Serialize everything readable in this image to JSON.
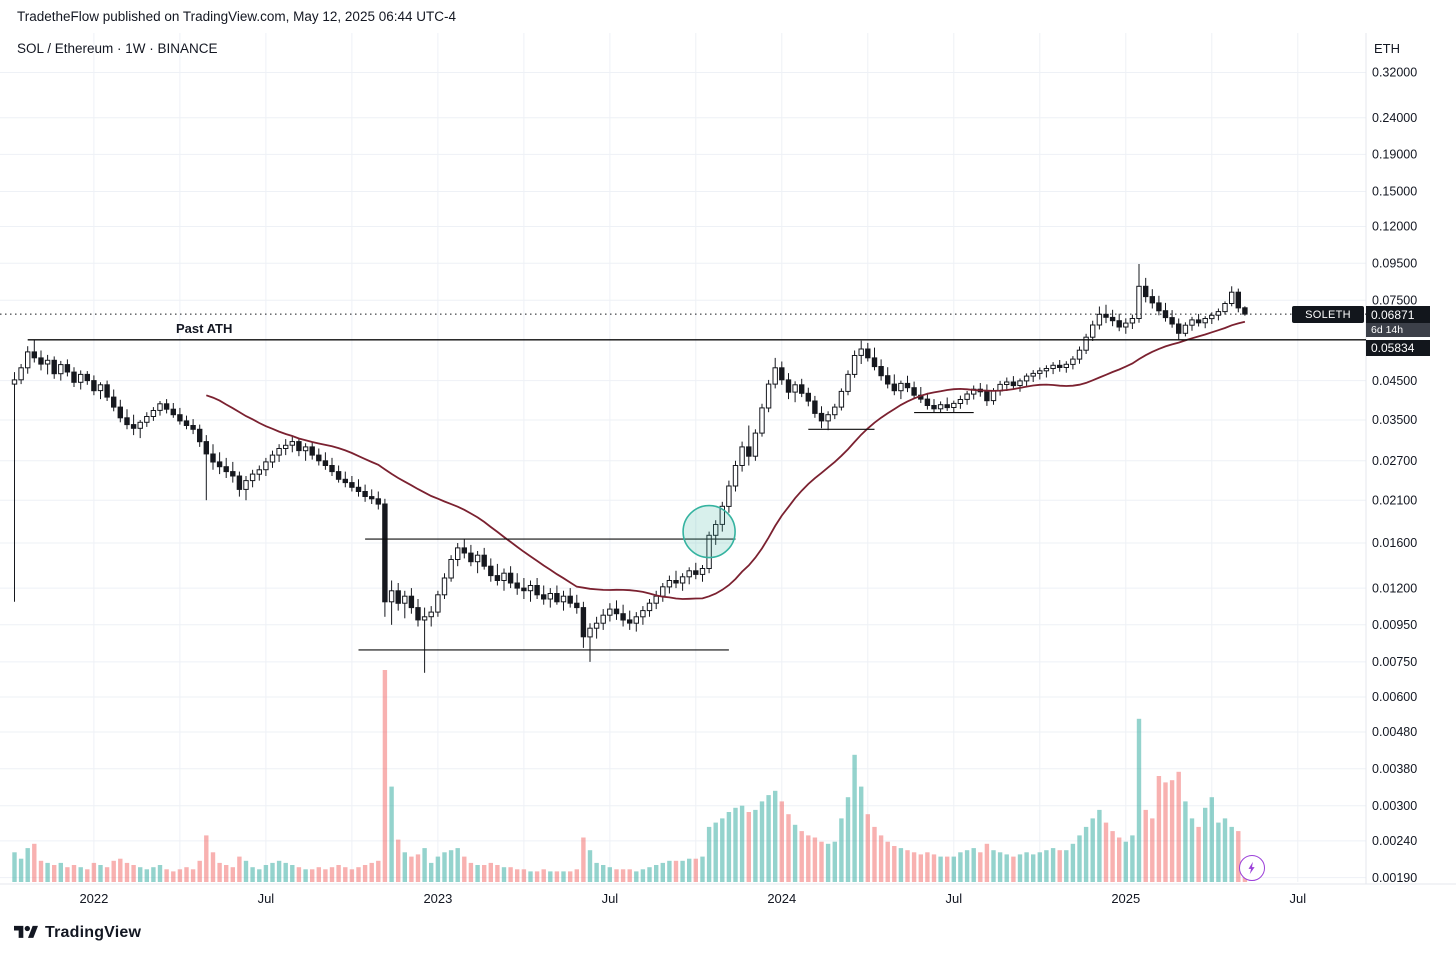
{
  "header": {
    "published_line": "TradetheFlow published on TradingView.com, May 12, 2025 06:44 UTC-4"
  },
  "legend": {
    "title": "SOL / Ethereum · 1W · BINANCE"
  },
  "price_axis": {
    "currency_label": "ETH"
  },
  "price_label_box": {
    "symbol": "SOLETH",
    "price": "0.06871",
    "countdown": "6d 14h",
    "line_price": "0.05834"
  },
  "footer": {
    "brand": "TradingView"
  },
  "colors": {
    "text": "#131722",
    "grid": "#eef1f6",
    "candle": "#16181e",
    "candle_up_fill": "#ffffff",
    "ma": "#7b2130",
    "drawing": "#0d0d0d",
    "circle_stroke": "#35b3a0",
    "circle_fill": "rgba(76,185,168,0.22)",
    "vol_up": "rgba(42,167,155,0.5)",
    "vol_down": "rgba(239,83,80,0.45)",
    "axis_separator": "#e4e7ee",
    "boost": "#9b3fd9"
  },
  "chart_data": {
    "type": "candlestick",
    "symbol": "SOL/ETH",
    "exchange": "BINANCE",
    "interval": "1W",
    "unit": "ETH",
    "scale": "logarithmic",
    "current_price": 0.06871,
    "bar_countdown": "6d 14h",
    "sma_period": 30,
    "price_ticks": [
      0.32,
      0.24,
      0.19,
      0.15,
      0.12,
      0.095,
      0.075,
      0.045,
      0.035,
      0.027,
      0.021,
      0.016,
      0.012,
      0.0095,
      0.0075,
      0.006,
      0.0048,
      0.0038,
      0.003,
      0.0024,
      0.0019
    ],
    "time_ticks": [
      {
        "label": "2022",
        "week": 12
      },
      {
        "label": "Jul",
        "week": 38
      },
      {
        "label": "2023",
        "week": 64
      },
      {
        "label": "Jul",
        "week": 90
      },
      {
        "label": "2024",
        "week": 116
      },
      {
        "label": "Jul",
        "week": 142
      },
      {
        "label": "2025",
        "week": 168
      },
      {
        "label": "Jul",
        "week": 194
      }
    ],
    "annotations": {
      "ath_line": {
        "label": "Past ATH",
        "price": 0.05834,
        "from_week": 2,
        "to": "right-edge"
      },
      "breakout_resistance": {
        "price": 0.0164,
        "from_week": 53,
        "to_week": 109
      },
      "base_support": {
        "price": 0.0081,
        "from_week": 52,
        "to_week": 108
      },
      "feb_2024_support": {
        "price": 0.033,
        "from_week": 120,
        "to_week": 130
      },
      "summer_2024_support": {
        "price": 0.0367,
        "from_week": 136,
        "to_week": 145
      },
      "breakout_circle": {
        "week": 105,
        "price": 0.0172,
        "radius": 26
      }
    },
    "candles": [
      [
        0.044,
        0.0475,
        0.011,
        0.0452,
        14
      ],
      [
        0.0452,
        0.05,
        0.044,
        0.0488,
        11
      ],
      [
        0.0488,
        0.056,
        0.047,
        0.054,
        16
      ],
      [
        0.054,
        0.0583,
        0.0505,
        0.052,
        18
      ],
      [
        0.052,
        0.0545,
        0.048,
        0.05,
        10
      ],
      [
        0.05,
        0.053,
        0.0468,
        0.0512,
        9
      ],
      [
        0.0512,
        0.0525,
        0.0455,
        0.047,
        8
      ],
      [
        0.047,
        0.051,
        0.045,
        0.0498,
        9
      ],
      [
        0.0498,
        0.0515,
        0.0462,
        0.0475,
        7
      ],
      [
        0.0475,
        0.049,
        0.0432,
        0.0445,
        8
      ],
      [
        0.0445,
        0.048,
        0.0425,
        0.0468,
        7
      ],
      [
        0.0468,
        0.0478,
        0.0438,
        0.045,
        6
      ],
      [
        0.045,
        0.0465,
        0.041,
        0.0422,
        9
      ],
      [
        0.0422,
        0.0445,
        0.04,
        0.0438,
        8
      ],
      [
        0.0438,
        0.045,
        0.0395,
        0.0405,
        7
      ],
      [
        0.0405,
        0.0425,
        0.037,
        0.038,
        10
      ],
      [
        0.038,
        0.0398,
        0.0345,
        0.0355,
        11
      ],
      [
        0.0355,
        0.0375,
        0.033,
        0.034,
        9
      ],
      [
        0.034,
        0.0362,
        0.0318,
        0.0332,
        8
      ],
      [
        0.0332,
        0.035,
        0.0312,
        0.0345,
        7
      ],
      [
        0.0345,
        0.0368,
        0.0335,
        0.0358,
        6
      ],
      [
        0.0358,
        0.038,
        0.0348,
        0.0372,
        7
      ],
      [
        0.0372,
        0.0395,
        0.036,
        0.0388,
        8
      ],
      [
        0.0388,
        0.04,
        0.0365,
        0.0375,
        6
      ],
      [
        0.0375,
        0.039,
        0.0355,
        0.0362,
        5
      ],
      [
        0.0362,
        0.0378,
        0.034,
        0.0348,
        6
      ],
      [
        0.0348,
        0.036,
        0.033,
        0.0338,
        7
      ],
      [
        0.0338,
        0.0352,
        0.032,
        0.033,
        6
      ],
      [
        0.033,
        0.034,
        0.0295,
        0.0305,
        10
      ],
      [
        0.0305,
        0.0318,
        0.021,
        0.0282,
        22
      ],
      [
        0.0282,
        0.03,
        0.0255,
        0.0268,
        14
      ],
      [
        0.0268,
        0.0285,
        0.0248,
        0.026,
        9
      ],
      [
        0.026,
        0.0275,
        0.0242,
        0.0252,
        8
      ],
      [
        0.0252,
        0.0268,
        0.0235,
        0.0245,
        7
      ],
      [
        0.0245,
        0.0252,
        0.0215,
        0.0225,
        12
      ],
      [
        0.0225,
        0.0245,
        0.021,
        0.0238,
        10
      ],
      [
        0.0238,
        0.0255,
        0.0228,
        0.0248,
        7
      ],
      [
        0.0248,
        0.0262,
        0.0238,
        0.0255,
        6
      ],
      [
        0.0255,
        0.0275,
        0.0245,
        0.0268,
        8
      ],
      [
        0.0268,
        0.0288,
        0.0258,
        0.028,
        9
      ],
      [
        0.028,
        0.03,
        0.0268,
        0.0292,
        10
      ],
      [
        0.0292,
        0.031,
        0.028,
        0.0298,
        9
      ],
      [
        0.0298,
        0.0315,
        0.0285,
        0.0305,
        8
      ],
      [
        0.0305,
        0.0312,
        0.0278,
        0.0288,
        7
      ],
      [
        0.0288,
        0.0302,
        0.027,
        0.0295,
        6
      ],
      [
        0.0295,
        0.0305,
        0.0272,
        0.028,
        6
      ],
      [
        0.028,
        0.0292,
        0.0262,
        0.027,
        7
      ],
      [
        0.027,
        0.0285,
        0.0255,
        0.0262,
        6
      ],
      [
        0.0262,
        0.0275,
        0.0245,
        0.0252,
        7
      ],
      [
        0.0252,
        0.0262,
        0.0235,
        0.024,
        8
      ],
      [
        0.024,
        0.0252,
        0.0228,
        0.0235,
        7
      ],
      [
        0.0235,
        0.0245,
        0.0222,
        0.0228,
        6
      ],
      [
        0.0228,
        0.024,
        0.0215,
        0.0222,
        7
      ],
      [
        0.0222,
        0.0232,
        0.0208,
        0.0215,
        8
      ],
      [
        0.0215,
        0.0225,
        0.0205,
        0.0212,
        9
      ],
      [
        0.0212,
        0.0222,
        0.0198,
        0.0205,
        10
      ],
      [
        0.0205,
        0.0212,
        0.01,
        0.011,
        100
      ],
      [
        0.011,
        0.0126,
        0.0095,
        0.0118,
        45
      ],
      [
        0.0118,
        0.0124,
        0.0104,
        0.0109,
        20
      ],
      [
        0.0109,
        0.0118,
        0.0099,
        0.0114,
        14
      ],
      [
        0.0114,
        0.012,
        0.0102,
        0.0106,
        12
      ],
      [
        0.0106,
        0.0112,
        0.0094,
        0.0098,
        13
      ],
      [
        0.0098,
        0.0106,
        0.007,
        0.01,
        16
      ],
      [
        0.01,
        0.0107,
        0.0094,
        0.0103,
        9
      ],
      [
        0.0103,
        0.0118,
        0.01,
        0.0115,
        12
      ],
      [
        0.0115,
        0.0132,
        0.0112,
        0.0128,
        14
      ],
      [
        0.0128,
        0.0148,
        0.0125,
        0.0144,
        15
      ],
      [
        0.0144,
        0.016,
        0.0138,
        0.0155,
        16
      ],
      [
        0.0155,
        0.0164,
        0.0145,
        0.015,
        12
      ],
      [
        0.015,
        0.0158,
        0.0138,
        0.0142,
        9
      ],
      [
        0.0142,
        0.0152,
        0.0132,
        0.0148,
        8
      ],
      [
        0.0148,
        0.0155,
        0.0135,
        0.0138,
        8
      ],
      [
        0.0138,
        0.0145,
        0.0125,
        0.013,
        9
      ],
      [
        0.013,
        0.014,
        0.0122,
        0.0126,
        8
      ],
      [
        0.0126,
        0.0136,
        0.0118,
        0.0132,
        7
      ],
      [
        0.0132,
        0.0138,
        0.012,
        0.0124,
        7
      ],
      [
        0.0124,
        0.0132,
        0.0115,
        0.012,
        6
      ],
      [
        0.012,
        0.0128,
        0.0112,
        0.0118,
        6
      ],
      [
        0.0118,
        0.0126,
        0.011,
        0.0122,
        5
      ],
      [
        0.0122,
        0.0128,
        0.0112,
        0.0115,
        5
      ],
      [
        0.0115,
        0.0122,
        0.0108,
        0.0112,
        6
      ],
      [
        0.0112,
        0.012,
        0.0106,
        0.0116,
        5
      ],
      [
        0.0116,
        0.0122,
        0.0108,
        0.011,
        5
      ],
      [
        0.011,
        0.0118,
        0.0104,
        0.0114,
        5
      ],
      [
        0.0114,
        0.012,
        0.0106,
        0.0109,
        5
      ],
      [
        0.0109,
        0.0115,
        0.0102,
        0.0106,
        6
      ],
      [
        0.0106,
        0.011,
        0.0082,
        0.0088,
        21
      ],
      [
        0.0088,
        0.0096,
        0.0075,
        0.0093,
        15
      ],
      [
        0.0093,
        0.01,
        0.0087,
        0.0096,
        9
      ],
      [
        0.0096,
        0.0105,
        0.0092,
        0.0101,
        8
      ],
      [
        0.0101,
        0.0109,
        0.0097,
        0.0105,
        7
      ],
      [
        0.0105,
        0.0111,
        0.0098,
        0.0102,
        6
      ],
      [
        0.0102,
        0.0108,
        0.0094,
        0.0098,
        6
      ],
      [
        0.0098,
        0.0104,
        0.0092,
        0.0096,
        6
      ],
      [
        0.0096,
        0.0103,
        0.0091,
        0.01,
        5
      ],
      [
        0.01,
        0.0107,
        0.0095,
        0.0104,
        6
      ],
      [
        0.0104,
        0.0112,
        0.01,
        0.0109,
        7
      ],
      [
        0.0109,
        0.0118,
        0.0105,
        0.0114,
        8
      ],
      [
        0.0114,
        0.0124,
        0.011,
        0.0121,
        9
      ],
      [
        0.0121,
        0.013,
        0.0116,
        0.0126,
        10
      ],
      [
        0.0126,
        0.0134,
        0.012,
        0.0124,
        10
      ],
      [
        0.0124,
        0.0132,
        0.0118,
        0.0129,
        10
      ],
      [
        0.0129,
        0.0137,
        0.0123,
        0.0134,
        11
      ],
      [
        0.0134,
        0.0141,
        0.0127,
        0.0131,
        11
      ],
      [
        0.0131,
        0.0139,
        0.0125,
        0.0136,
        12
      ],
      [
        0.0136,
        0.0172,
        0.0132,
        0.0168,
        26
      ],
      [
        0.0168,
        0.0185,
        0.0158,
        0.018,
        28
      ],
      [
        0.018,
        0.0208,
        0.0172,
        0.0202,
        30
      ],
      [
        0.0202,
        0.0238,
        0.0194,
        0.023,
        33
      ],
      [
        0.023,
        0.027,
        0.0222,
        0.0262,
        35
      ],
      [
        0.0262,
        0.0305,
        0.0252,
        0.0295,
        36
      ],
      [
        0.0295,
        0.0338,
        0.0262,
        0.0278,
        33
      ],
      [
        0.0278,
        0.033,
        0.027,
        0.0322,
        34
      ],
      [
        0.0322,
        0.0388,
        0.0315,
        0.0378,
        38
      ],
      [
        0.0378,
        0.0452,
        0.0368,
        0.044,
        41
      ],
      [
        0.044,
        0.052,
        0.0428,
        0.0488,
        43
      ],
      [
        0.0488,
        0.0508,
        0.0438,
        0.0452,
        38
      ],
      [
        0.0452,
        0.0472,
        0.04,
        0.0418,
        32
      ],
      [
        0.0418,
        0.0448,
        0.0392,
        0.0438,
        27
      ],
      [
        0.0438,
        0.0455,
        0.0405,
        0.0415,
        24
      ],
      [
        0.0415,
        0.043,
        0.0382,
        0.0395,
        22
      ],
      [
        0.0395,
        0.0408,
        0.0355,
        0.0365,
        21
      ],
      [
        0.0365,
        0.0382,
        0.0332,
        0.0348,
        19
      ],
      [
        0.0348,
        0.037,
        0.0328,
        0.0362,
        18
      ],
      [
        0.0362,
        0.0388,
        0.0352,
        0.038,
        19
      ],
      [
        0.038,
        0.0428,
        0.0372,
        0.042,
        30
      ],
      [
        0.042,
        0.048,
        0.041,
        0.0468,
        40
      ],
      [
        0.0468,
        0.0545,
        0.0458,
        0.0528,
        60
      ],
      [
        0.0528,
        0.058,
        0.05,
        0.055,
        45
      ],
      [
        0.055,
        0.0572,
        0.0508,
        0.052,
        32
      ],
      [
        0.052,
        0.0555,
        0.048,
        0.0492,
        26
      ],
      [
        0.0492,
        0.0515,
        0.045,
        0.0464,
        22
      ],
      [
        0.0464,
        0.049,
        0.0428,
        0.044,
        19
      ],
      [
        0.044,
        0.0468,
        0.041,
        0.0422,
        17
      ],
      [
        0.0422,
        0.045,
        0.04,
        0.0442,
        16
      ],
      [
        0.0442,
        0.0464,
        0.0418,
        0.043,
        15
      ],
      [
        0.043,
        0.0447,
        0.04,
        0.041,
        14
      ],
      [
        0.041,
        0.0432,
        0.039,
        0.04,
        13
      ],
      [
        0.04,
        0.0416,
        0.0374,
        0.0384,
        14
      ],
      [
        0.0384,
        0.04,
        0.0366,
        0.0376,
        13
      ],
      [
        0.0376,
        0.0394,
        0.0367,
        0.0386,
        12
      ],
      [
        0.0386,
        0.0404,
        0.0371,
        0.0379,
        12
      ],
      [
        0.0379,
        0.0396,
        0.0366,
        0.0389,
        12
      ],
      [
        0.0389,
        0.0409,
        0.0376,
        0.0399,
        14
      ],
      [
        0.0399,
        0.0421,
        0.0386,
        0.0413,
        15
      ],
      [
        0.0413,
        0.0436,
        0.0399,
        0.0426,
        16
      ],
      [
        0.0426,
        0.0443,
        0.0406,
        0.0419,
        14
      ],
      [
        0.0419,
        0.0439,
        0.0383,
        0.0396,
        18
      ],
      [
        0.0396,
        0.0429,
        0.0386,
        0.0421,
        15
      ],
      [
        0.0421,
        0.0449,
        0.0409,
        0.0439,
        14
      ],
      [
        0.0439,
        0.0459,
        0.0421,
        0.0446,
        13
      ],
      [
        0.0446,
        0.0463,
        0.0426,
        0.0436,
        12
      ],
      [
        0.0436,
        0.0456,
        0.0419,
        0.0449,
        13
      ],
      [
        0.0449,
        0.0471,
        0.0433,
        0.0463,
        14
      ],
      [
        0.0463,
        0.0481,
        0.0446,
        0.0471,
        13
      ],
      [
        0.0471,
        0.0489,
        0.0453,
        0.0479,
        14
      ],
      [
        0.0479,
        0.0496,
        0.0459,
        0.0486,
        15
      ],
      [
        0.0486,
        0.0506,
        0.0469,
        0.0496,
        16
      ],
      [
        0.0496,
        0.0513,
        0.0476,
        0.0489,
        15
      ],
      [
        0.0489,
        0.0509,
        0.0473,
        0.0499,
        15
      ],
      [
        0.0499,
        0.0526,
        0.0483,
        0.0516,
        18
      ],
      [
        0.0516,
        0.0559,
        0.0501,
        0.0546,
        22
      ],
      [
        0.0546,
        0.0606,
        0.0533,
        0.0593,
        26
      ],
      [
        0.0593,
        0.0659,
        0.0579,
        0.0641,
        30
      ],
      [
        0.0641,
        0.0721,
        0.0623,
        0.0686,
        34
      ],
      [
        0.0686,
        0.0729,
        0.0649,
        0.0673,
        28
      ],
      [
        0.0673,
        0.0706,
        0.0636,
        0.0659,
        24
      ],
      [
        0.0659,
        0.0689,
        0.0616,
        0.0633,
        21
      ],
      [
        0.0633,
        0.0669,
        0.0606,
        0.0649,
        19
      ],
      [
        0.0649,
        0.0685,
        0.0625,
        0.0668,
        22
      ],
      [
        0.0668,
        0.0945,
        0.065,
        0.082,
        77
      ],
      [
        0.082,
        0.0865,
        0.074,
        0.0768,
        34
      ],
      [
        0.0768,
        0.0805,
        0.0712,
        0.0738,
        30
      ],
      [
        0.0738,
        0.0772,
        0.0682,
        0.0702,
        50
      ],
      [
        0.0702,
        0.0738,
        0.0655,
        0.0672,
        47
      ],
      [
        0.0672,
        0.0705,
        0.063,
        0.0645,
        48
      ],
      [
        0.0645,
        0.0668,
        0.0584,
        0.0608,
        52
      ],
      [
        0.0608,
        0.0652,
        0.0596,
        0.064,
        38
      ],
      [
        0.064,
        0.0675,
        0.0618,
        0.0662,
        30
      ],
      [
        0.0662,
        0.0688,
        0.0635,
        0.065,
        26
      ],
      [
        0.065,
        0.0678,
        0.0628,
        0.0668,
        35
      ],
      [
        0.0668,
        0.0695,
        0.0645,
        0.0682,
        40
      ],
      [
        0.0682,
        0.0712,
        0.066,
        0.0698,
        28
      ],
      [
        0.0698,
        0.0745,
        0.0685,
        0.0735,
        30
      ],
      [
        0.0735,
        0.082,
        0.0722,
        0.079,
        26
      ],
      [
        0.079,
        0.0808,
        0.0695,
        0.0715,
        24
      ],
      [
        0.0715,
        0.0722,
        0.068,
        0.0687,
        8
      ]
    ]
  }
}
